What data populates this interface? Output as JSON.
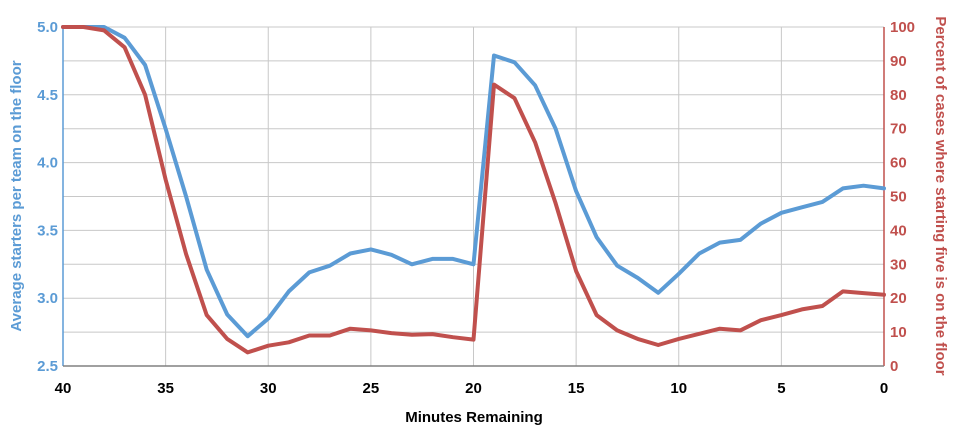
{
  "chart_data": {
    "type": "line",
    "xlabel": "Minutes Remaining",
    "ylabel_left": "Average starters per team on the floor",
    "ylabel_right": "Percent of cases where starting five is on the floor",
    "xlim": [
      40,
      0
    ],
    "ylim_left": [
      2.5,
      5.0
    ],
    "ylim_right": [
      0,
      100
    ],
    "x_ticks": [
      "40",
      "35",
      "30",
      "25",
      "20",
      "15",
      "10",
      "5",
      "0"
    ],
    "y_left_ticks": [
      "2.5",
      "3.0",
      "3.5",
      "4.0",
      "4.5",
      "5.0"
    ],
    "y_right_ticks": [
      "0",
      "10",
      "20",
      "30",
      "40",
      "50",
      "60",
      "70",
      "80",
      "90",
      "100"
    ],
    "grid": true,
    "x": [
      40,
      39,
      38,
      37,
      36,
      35,
      34,
      33,
      32,
      31,
      30,
      29,
      28,
      27,
      26,
      25,
      24,
      23,
      22,
      21,
      20,
      19,
      18,
      17,
      16,
      15,
      14,
      13,
      12,
      11,
      10,
      9,
      8,
      7,
      6,
      5,
      4,
      3,
      2,
      1,
      0
    ],
    "series": [
      {
        "axis": "left",
        "color": "#5b9bd5",
        "values": [
          5.0,
          5.0,
          5.0,
          4.92,
          4.72,
          4.25,
          3.75,
          3.21,
          2.88,
          2.72,
          2.85,
          3.05,
          3.19,
          3.24,
          3.33,
          3.36,
          3.32,
          3.25,
          3.29,
          3.29,
          3.25,
          4.79,
          4.74,
          4.57,
          4.25,
          3.79,
          3.45,
          3.24,
          3.15,
          3.04,
          3.18,
          3.33,
          3.41,
          3.43,
          3.55,
          3.63,
          3.67,
          3.71,
          3.81,
          3.83,
          3.81
        ]
      },
      {
        "axis": "right",
        "color": "#c0504d",
        "values": [
          100,
          100,
          99,
          94,
          80,
          55,
          33,
          15,
          8,
          4,
          6,
          7,
          9,
          9,
          11,
          10.5,
          9.7,
          9.2,
          9.4,
          8.5,
          7.8,
          83,
          79,
          66,
          48,
          28,
          15,
          10.5,
          8,
          6.2,
          8,
          9.5,
          11,
          10.5,
          13.5,
          15,
          16.7,
          17.7,
          22,
          21.5,
          21
        ]
      }
    ]
  }
}
